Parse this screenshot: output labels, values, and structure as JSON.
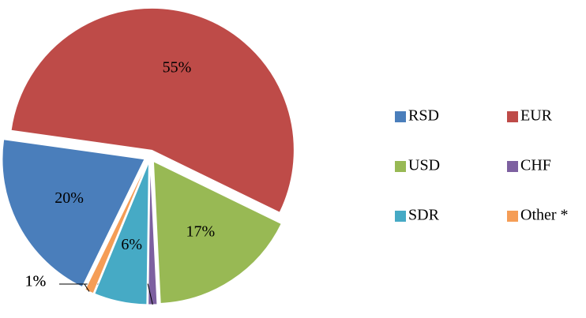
{
  "chart_data": {
    "type": "pie",
    "categories": [
      "RSD",
      "EUR",
      "USD",
      "CHF",
      "SDR",
      "Other *"
    ],
    "values": [
      20,
      55,
      17,
      1,
      6,
      1
    ],
    "value_labels": [
      "20%",
      "55%",
      "17%",
      "1%",
      "6%",
      "1%"
    ],
    "colors": [
      "#4a7ebb",
      "#be4b48",
      "#98b954",
      "#7d60a0",
      "#46aac5",
      "#f59d56"
    ],
    "legend": "right"
  }
}
